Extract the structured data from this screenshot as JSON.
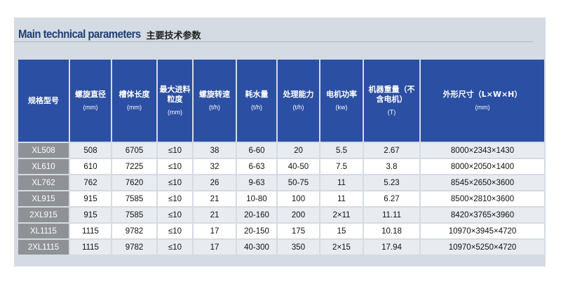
{
  "title": {
    "english": "Main technical parameters",
    "chinese": "主要技术参数"
  },
  "table": {
    "headers": [
      {
        "label": "规格型号",
        "unit": ""
      },
      {
        "label": "螺旋直径",
        "unit": "(mm)"
      },
      {
        "label": "槽体长度",
        "unit": "(mm)"
      },
      {
        "label": "最大进料粒度",
        "unit": "(mm)"
      },
      {
        "label": "螺旋转速",
        "unit": "(t/h)"
      },
      {
        "label": "耗水量",
        "unit": "(t/h)"
      },
      {
        "label": "处理能力",
        "unit": "(t/h)"
      },
      {
        "label": "电机功率",
        "unit": "(kw)"
      },
      {
        "label": "机器重量（不含电机）",
        "unit": "(T)"
      },
      {
        "label": "外形尺寸（L×W×H）",
        "unit": "(mm)"
      }
    ],
    "rows": [
      [
        "XL508",
        "508",
        "6705",
        "≤10",
        "38",
        "6-60",
        "20",
        "5.5",
        "2.67",
        "8000×2343×1430"
      ],
      [
        "XL610",
        "610",
        "7225",
        "≤10",
        "32",
        "6-63",
        "40-50",
        "7.5",
        "3.8",
        "8000×2050×1400"
      ],
      [
        "XL762",
        "762",
        "7620",
        "≤10",
        "26",
        "9-63",
        "50-75",
        "11",
        "5.23",
        "8545×2650×3600"
      ],
      [
        "XL915",
        "915",
        "7585",
        "≤10",
        "21",
        "10-80",
        "100",
        "11",
        "6.27",
        "8500×2810×3600"
      ],
      [
        "2XL915",
        "915",
        "7585",
        "≤10",
        "21",
        "20-160",
        "200",
        "2×11",
        "11.11",
        "8420×3765×3960"
      ],
      [
        "XL1115",
        "1115",
        "9782",
        "≤10",
        "17",
        "20-150",
        "175",
        "15",
        "10.18",
        "10970×3945×4720"
      ],
      [
        "2XL1115",
        "1115",
        "9782",
        "≤10",
        "17",
        "40-300",
        "350",
        "2×15",
        "17.94",
        "10970×5250×4720"
      ]
    ]
  }
}
